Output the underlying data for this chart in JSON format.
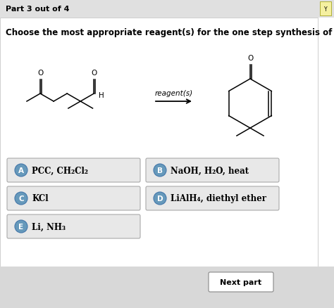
{
  "title_bar": "Part 3 out of 4",
  "question": "Choose the most appropriate reagent(s) for the one step synthesis of the target molecule.",
  "reagent_label": "reagent(s)",
  "choices": [
    {
      "letter": "A",
      "text": "PCC, CH₂Cl₂"
    },
    {
      "letter": "B",
      "text": "NaOH, H₂O, heat"
    },
    {
      "letter": "C",
      "text": "KCl"
    },
    {
      "letter": "D",
      "text": "LiAlH₄, diethyl ether"
    },
    {
      "letter": "E",
      "text": "Li, NH₃"
    }
  ],
  "next_button": "Next part",
  "white": "#ffffff",
  "choice_bg": "#e8e8e8",
  "circle_color": "#6699bb",
  "title_bar_color": "#e0e0e0",
  "bottom_bar_color": "#d8d8d8",
  "border_color": "#bbbbbb",
  "question_fontsize": 8.5,
  "title_fontsize": 8.0,
  "choice_fontsize": 8.5
}
